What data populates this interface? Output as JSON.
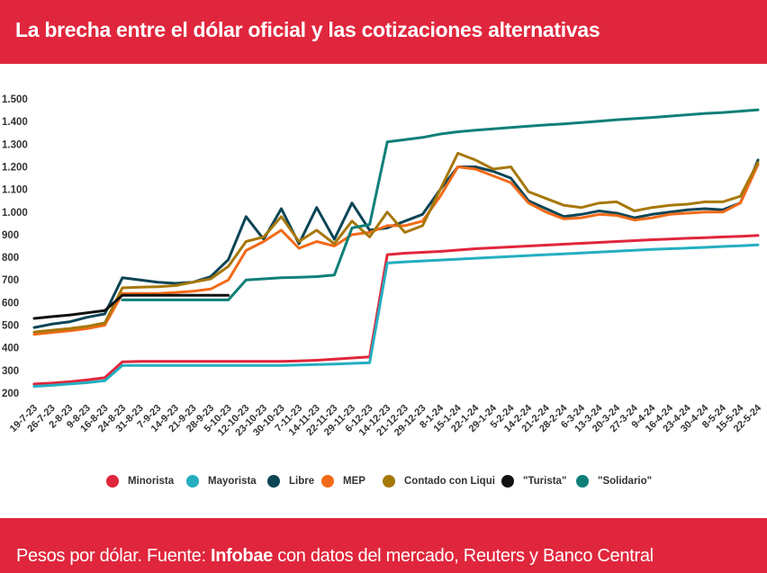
{
  "header": {
    "title": "La brecha entre el dólar oficial y las cotizaciones alternativas"
  },
  "footer": {
    "prefix": "Pesos por dólar. Fuente: ",
    "source_bold": "Infobae",
    "suffix": " con datos del mercado, Reuters y Banco Central"
  },
  "chart_data": {
    "type": "line",
    "ylim": [
      200,
      1500
    ],
    "y_ticks": [
      "200",
      "300",
      "400",
      "500",
      "600",
      "700",
      "800",
      "900",
      "1.000",
      "1.100",
      "1.200",
      "1.300",
      "1.400",
      "1.500"
    ],
    "grid": false,
    "legend_position": "bottom",
    "x_labels": [
      "19-7-23",
      "26-7-23",
      "2-8-23",
      "9-8-23",
      "16-8-23",
      "24-8-23",
      "31-8-23",
      "7-9-23",
      "14-9-23",
      "21-9-23",
      "28-9-23",
      "5-10-23",
      "12-10-23",
      "23-10-23",
      "30-10-23",
      "7-11-23",
      "14-11-23",
      "22-11-23",
      "29-11-23",
      "6-12-23",
      "14-12-23",
      "21-12-23",
      "29-12-23",
      "8-1-24",
      "15-1-24",
      "22-1-24",
      "29-1-24",
      "5-2-24",
      "14-2-24",
      "21-2-24",
      "28-2-24",
      "6-3-24",
      "13-3-24",
      "20-3-24",
      "27-3-24",
      "9-4-24",
      "16-4-24",
      "23-4-24",
      "30-4-24",
      "8-5-24",
      "15-5-24",
      "22-5-24"
    ],
    "series": [
      {
        "name": "Minorista",
        "color": "#e0263c",
        "values": [
          240,
          244,
          250,
          258,
          268,
          338,
          340,
          340,
          340,
          340,
          340,
          340,
          340,
          340,
          340,
          342,
          345,
          350,
          355,
          360,
          812,
          818,
          822,
          826,
          832,
          838,
          842,
          846,
          850,
          854,
          858,
          862,
          866,
          870,
          874,
          878,
          881,
          884,
          887,
          890,
          893,
          897
        ]
      },
      {
        "name": "Mayorista",
        "color": "#24aec0",
        "values": [
          230,
          234,
          240,
          246,
          255,
          322,
          322,
          322,
          322,
          322,
          322,
          322,
          322,
          322,
          322,
          324,
          326,
          328,
          331,
          334,
          775,
          780,
          784,
          788,
          792,
          796,
          800,
          804,
          808,
          812,
          815,
          819,
          823,
          827,
          831,
          835,
          838,
          841,
          844,
          848,
          851,
          855
        ]
      },
      {
        "name": "Libre",
        "color": "#0b4556",
        "values": [
          490,
          505,
          515,
          535,
          550,
          710,
          700,
          690,
          685,
          690,
          715,
          790,
          980,
          880,
          1015,
          860,
          1020,
          880,
          1040,
          920,
          930,
          960,
          990,
          1100,
          1200,
          1200,
          1180,
          1150,
          1050,
          1015,
          980,
          990,
          1005,
          995,
          975,
          990,
          1000,
          1010,
          1015,
          1010,
          1040,
          1230
        ]
      },
      {
        "name": "MEP",
        "color": "#f26a18",
        "values": [
          460,
          468,
          475,
          485,
          500,
          640,
          640,
          640,
          645,
          650,
          660,
          700,
          830,
          870,
          920,
          840,
          870,
          850,
          900,
          910,
          940,
          940,
          960,
          1070,
          1200,
          1190,
          1160,
          1130,
          1040,
          1000,
          970,
          975,
          990,
          985,
          965,
          975,
          990,
          995,
          1000,
          1000,
          1040,
          1210
        ]
      },
      {
        "name": "Contado con Liqui",
        "color": "#a6780a",
        "values": [
          470,
          478,
          485,
          495,
          510,
          665,
          668,
          670,
          675,
          690,
          705,
          760,
          870,
          890,
          980,
          870,
          920,
          860,
          960,
          890,
          1000,
          910,
          940,
          1100,
          1260,
          1230,
          1190,
          1200,
          1090,
          1060,
          1030,
          1020,
          1040,
          1045,
          1005,
          1020,
          1030,
          1035,
          1045,
          1045,
          1070,
          1220
        ]
      },
      {
        "name": "\"Turista\"",
        "color": "#111111",
        "values": [
          530,
          538,
          545,
          555,
          565,
          632,
          632,
          632,
          632,
          632,
          632,
          632,
          null,
          null,
          null,
          null,
          null,
          null,
          null,
          null,
          null,
          null,
          null,
          null,
          null,
          null,
          null,
          null,
          null,
          null,
          null,
          null,
          null,
          null,
          null,
          null,
          null,
          null,
          null,
          null,
          null,
          null
        ]
      },
      {
        "name": "\"Solidario\"",
        "color": "#0f7f78",
        "values": [
          null,
          null,
          null,
          null,
          null,
          612,
          612,
          612,
          612,
          612,
          612,
          612,
          700,
          705,
          710,
          712,
          715,
          722,
          930,
          945,
          1310,
          1320,
          1330,
          1345,
          1355,
          1362,
          1368,
          1374,
          1380,
          1385,
          1390,
          1396,
          1402,
          1408,
          1413,
          1418,
          1424,
          1430,
          1436,
          1440,
          1446,
          1452
        ]
      }
    ]
  }
}
